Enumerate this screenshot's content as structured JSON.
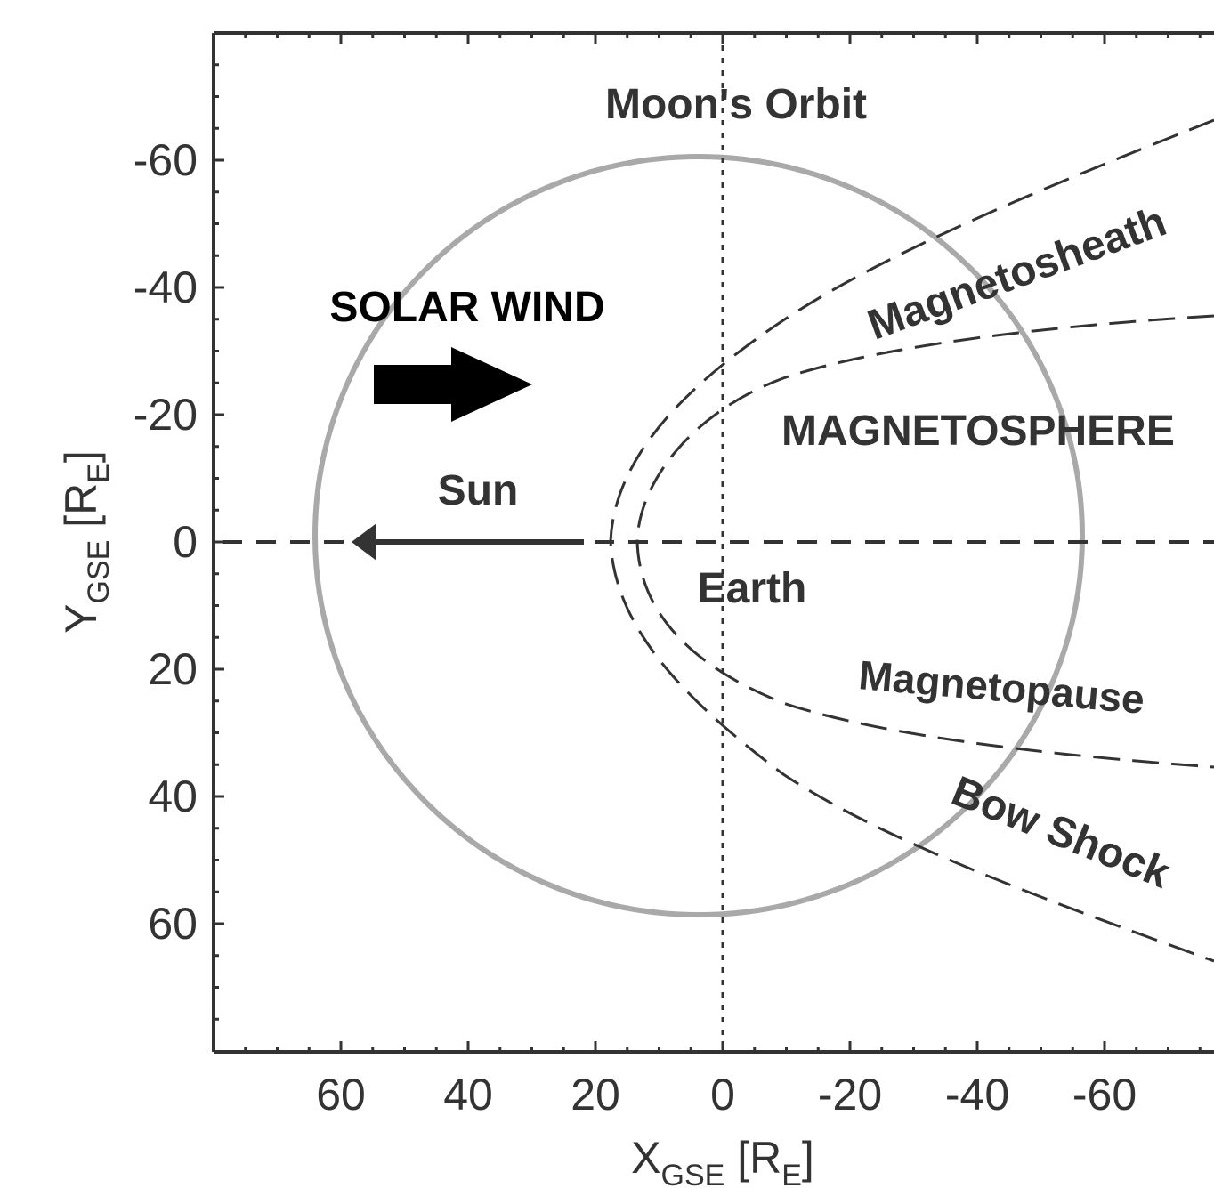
{
  "diagram": {
    "moon_orbit_label": "Moon's Orbit",
    "solar_wind_label": "SOLAR WIND",
    "magnetosheath_label": "Magnetosheath",
    "magnetosphere_label": "MAGNETOSPHERE",
    "sun_label": "Sun",
    "earth_label": "Earth",
    "magnetopause_label": "Magnetopause",
    "bow_shock_label": "Bow Shock",
    "moon_orbit_color": "#a9a9a9",
    "line_color": "#333333",
    "arrow_color": "#000000",
    "solar_wind_arrow_icon": "block-arrow-right-icon",
    "sun_arrow_icon": "arrow-left-icon"
  },
  "axes": {
    "x": {
      "title_main": "X",
      "title_sub": "GSE",
      "title_unit_open": " [R",
      "title_unit_sub": "E",
      "title_unit_close": "]",
      "ticks": [
        "60",
        "40",
        "20",
        "0",
        "-20",
        "-40",
        "-60"
      ]
    },
    "y": {
      "title_main": "Y",
      "title_sub": "GSE",
      "title_unit_open": " [R",
      "title_unit_sub": "E",
      "title_unit_close": "]",
      "ticks": [
        "-60",
        "-40",
        "-20",
        "0",
        "20",
        "40",
        "60"
      ]
    }
  }
}
